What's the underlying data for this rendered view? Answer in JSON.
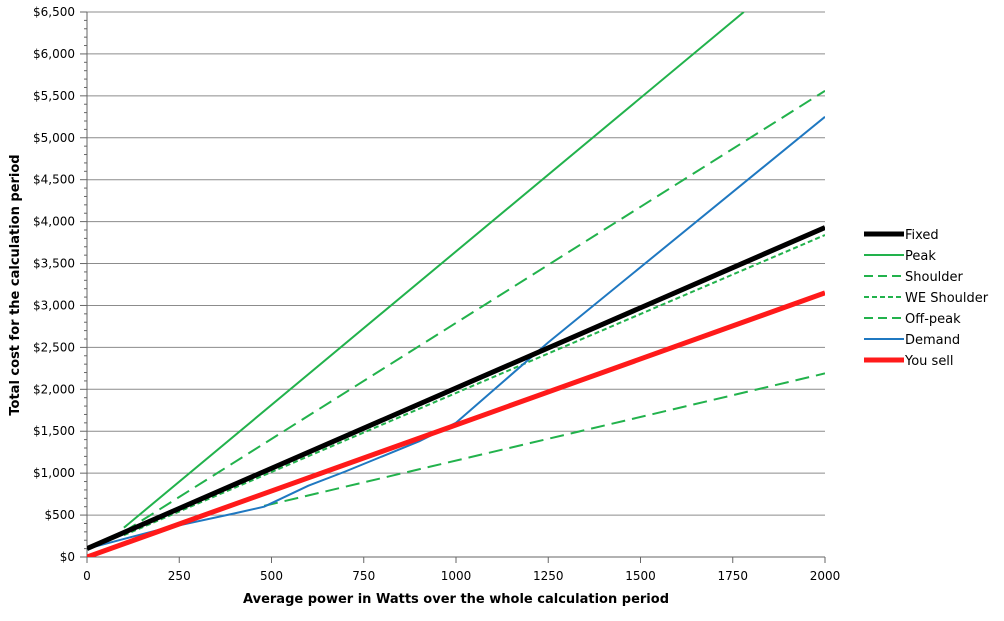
{
  "chart_data": {
    "type": "line",
    "title": "",
    "xlabel": "Average power in Watts  over the whole calculation period",
    "ylabel": "Total cost for the calculation period",
    "xlim": [
      0,
      2000
    ],
    "ylim": [
      0,
      6500
    ],
    "x_ticks": [
      0,
      250,
      500,
      750,
      1000,
      1250,
      1500,
      1750,
      2000
    ],
    "x_tick_labels": [
      "0",
      "250",
      "500",
      "750",
      "1000",
      "1250",
      "1500",
      "1750",
      "2000"
    ],
    "y_ticks": [
      0,
      500,
      1000,
      1500,
      2000,
      2500,
      3000,
      3500,
      4000,
      4500,
      5000,
      5500,
      6000,
      6500
    ],
    "y_tick_labels": [
      "$0",
      "$500",
      "$1,000",
      "$1,500",
      "$2,000",
      "$2,500",
      "$3,000",
      "$3,500",
      "$4,000",
      "$4,500",
      "$5,000",
      "$5,500",
      "$6,000",
      "$6,500"
    ],
    "grid": "horizontal",
    "legend_position": "right",
    "series": [
      {
        "name": "Fixed",
        "color": "#000000",
        "style": "solid-thick",
        "x": [
          0,
          2000
        ],
        "y": [
          100,
          3930
        ]
      },
      {
        "name": "Peak",
        "color": "#22b24c",
        "style": "solid",
        "x": [
          100,
          1780
        ],
        "y": [
          350,
          6500
        ]
      },
      {
        "name": "Shoulder",
        "color": "#22b24c",
        "style": "dashed",
        "x": [
          100,
          2000
        ],
        "y": [
          300,
          5560
        ]
      },
      {
        "name": "WE Shoulder",
        "color": "#22b24c",
        "style": "dotted",
        "x": [
          100,
          2000
        ],
        "y": [
          260,
          3840
        ]
      },
      {
        "name": "Off-peak",
        "color": "#22b24c",
        "style": "dashed",
        "x": [
          480,
          2000
        ],
        "y": [
          610,
          2190
        ]
      },
      {
        "name": "Demand",
        "color": "#1f78c1",
        "style": "solid",
        "x": [
          0,
          200,
          400,
          480,
          600,
          700,
          800,
          900,
          1000,
          1250,
          2000
        ],
        "y": [
          100,
          330,
          520,
          600,
          850,
          1020,
          1200,
          1380,
          1600,
          2560,
          5250
        ]
      },
      {
        "name": "You sell",
        "color": "#ff1a1a",
        "style": "solid-thick",
        "x": [
          0,
          2000
        ],
        "y": [
          0,
          3150
        ]
      }
    ]
  }
}
